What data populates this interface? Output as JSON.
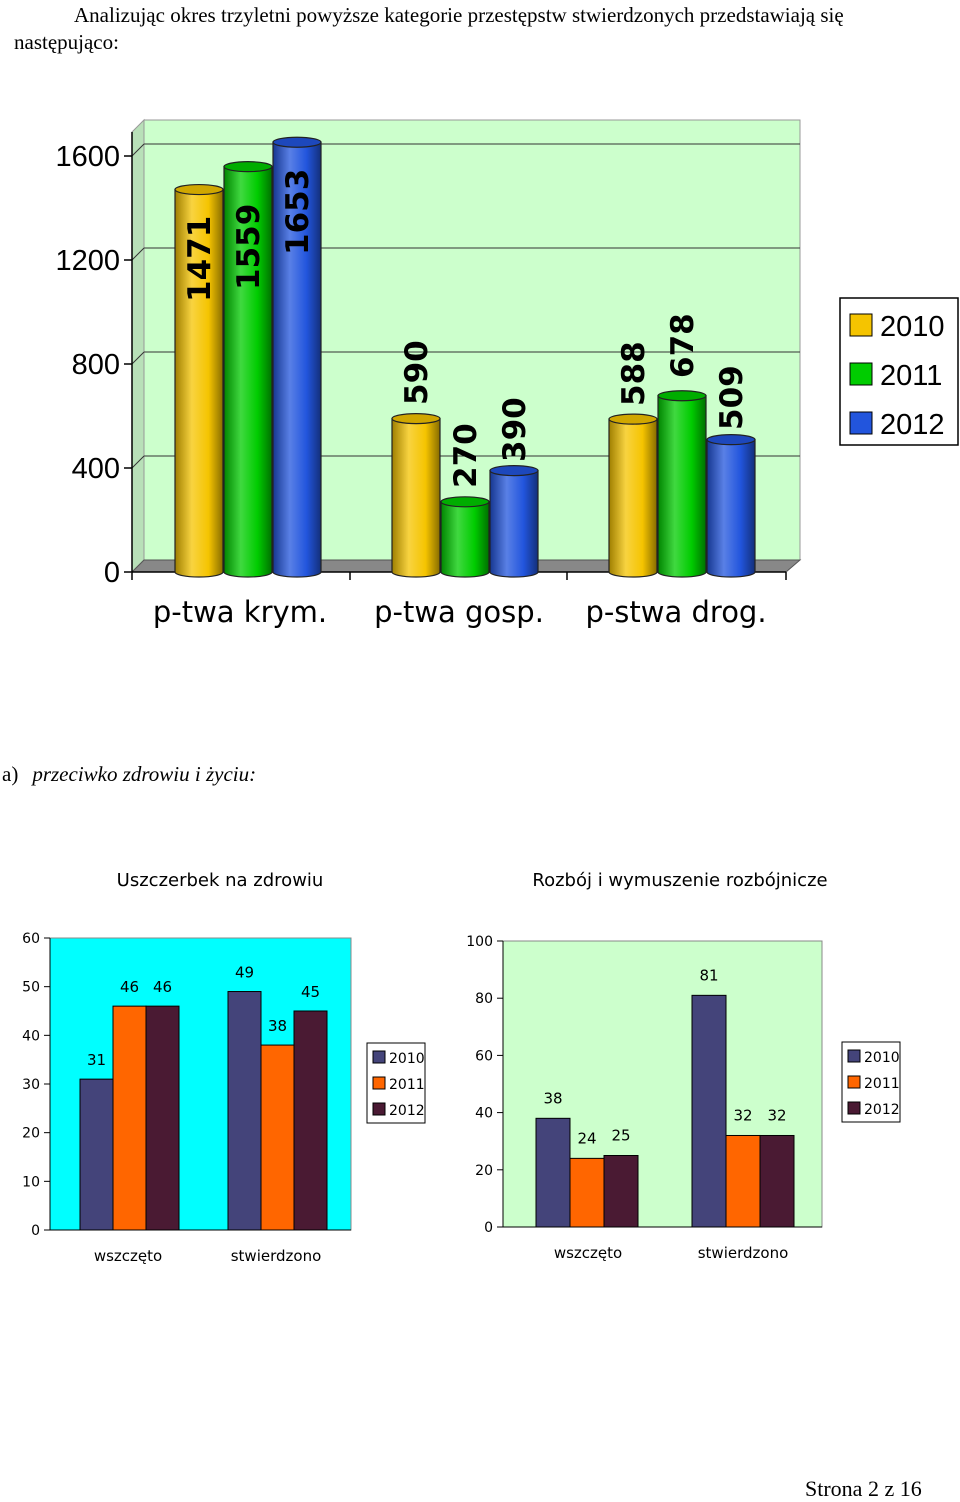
{
  "intro": "Analizując okres trzyletni powyższe kategorie przestępstw stwierdzonych przedstawiają się następująco:",
  "section": {
    "marker": "a)",
    "text": "przeciwko zdrowiu i życiu:"
  },
  "footer": "Strona 2 z 16",
  "colors": {
    "2010_main": "#f5c400",
    "2011_main": "#00cc00",
    "2012_main": "#2255dd",
    "2010_small": "#44447a",
    "2011_small": "#ff6600",
    "2012_small": "#4a1a33",
    "plot_cyan": "#00ffff",
    "plot_lightgreen": "#ccffcc"
  },
  "chart_data": [
    {
      "type": "bar",
      "title": "",
      "categories": [
        "p-twa krym.",
        "p-twa gosp.",
        "p-stwa drog."
      ],
      "series": [
        {
          "name": "2010",
          "values": [
            1471,
            590,
            588
          ]
        },
        {
          "name": "2011",
          "values": [
            1559,
            270,
            678
          ]
        },
        {
          "name": "2012",
          "values": [
            1653,
            390,
            509
          ]
        }
      ],
      "yticks": [
        "0",
        "400",
        "800",
        "1200",
        "1600"
      ],
      "ylim": [
        0,
        1600
      ],
      "legend": "right",
      "grid": true
    },
    {
      "type": "bar",
      "title": "Uszczerbek na zdrowiu",
      "categories": [
        "wszczęto",
        "stwierdzono"
      ],
      "series": [
        {
          "name": "2010",
          "values": [
            31,
            49
          ]
        },
        {
          "name": "2011",
          "values": [
            46,
            38
          ]
        },
        {
          "name": "2012",
          "values": [
            46,
            45
          ]
        }
      ],
      "yticks": [
        "0",
        "10",
        "20",
        "30",
        "40",
        "50",
        "60"
      ],
      "ylim": [
        0,
        60
      ],
      "legend": "right",
      "grid": false
    },
    {
      "type": "bar",
      "title": "Rozbój i wymuszenie rozbójnicze",
      "categories": [
        "wszczęto",
        "stwierdzono"
      ],
      "series": [
        {
          "name": "2010",
          "values": [
            38,
            81
          ]
        },
        {
          "name": "2011",
          "values": [
            24,
            32
          ]
        },
        {
          "name": "2012",
          "values": [
            25,
            32
          ]
        }
      ],
      "yticks": [
        "0",
        "20",
        "40",
        "60",
        "80",
        "100"
      ],
      "ylim": [
        0,
        100
      ],
      "legend": "right",
      "grid": false
    }
  ]
}
